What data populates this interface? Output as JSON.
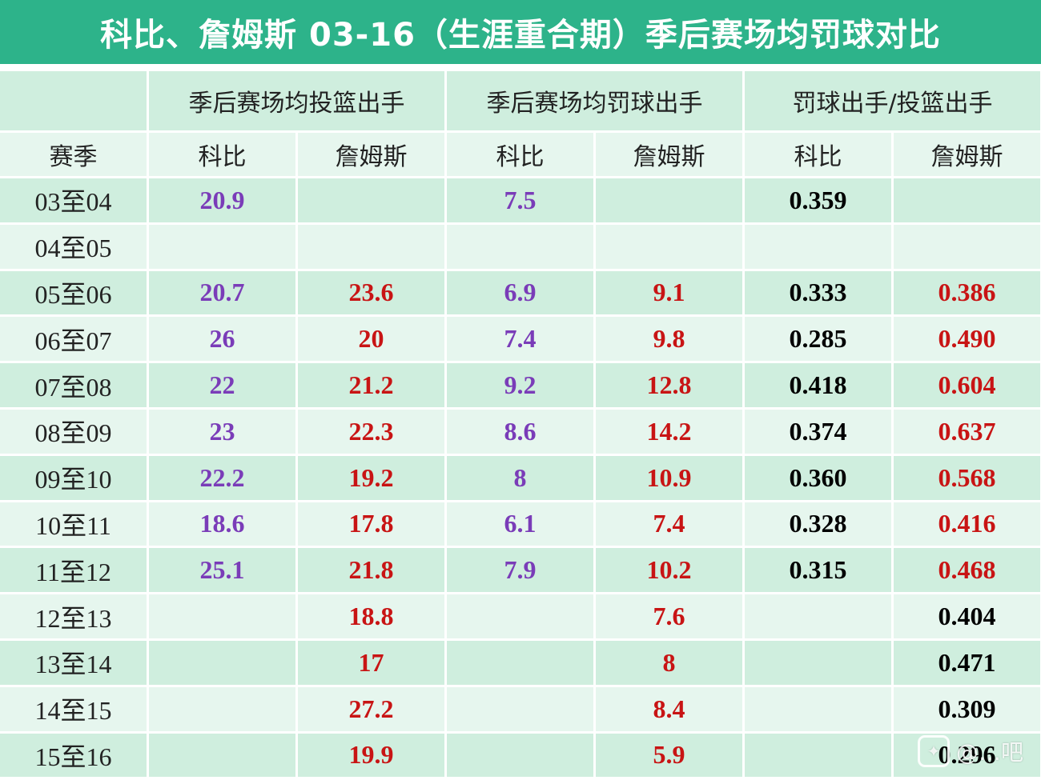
{
  "title": "科比、詹姆斯 03-16（生涯重合期）季后赛场均罚球对比",
  "header_groups": {
    "shots": "季后赛场均投篮出手",
    "ft": "季后赛场均罚球出手",
    "ratio": "罚球出手/投篮出手"
  },
  "header_sub": {
    "season": "赛季",
    "kobe": "科比",
    "james": "詹姆斯"
  },
  "rows": [
    {
      "season": "03至04",
      "kobe_fga": "20.9",
      "james_fga": "",
      "kobe_fta": "7.5",
      "james_fta": "",
      "kobe_ratio": "0.359",
      "james_ratio": ""
    },
    {
      "season": "04至05",
      "kobe_fga": "",
      "james_fga": "",
      "kobe_fta": "",
      "james_fta": "",
      "kobe_ratio": "",
      "james_ratio": ""
    },
    {
      "season": "05至06",
      "kobe_fga": "20.7",
      "james_fga": "23.6",
      "kobe_fta": "6.9",
      "james_fta": "9.1",
      "kobe_ratio": "0.333",
      "james_ratio": "0.386"
    },
    {
      "season": "06至07",
      "kobe_fga": "26",
      "james_fga": "20",
      "kobe_fta": "7.4",
      "james_fta": "9.8",
      "kobe_ratio": "0.285",
      "james_ratio": "0.490"
    },
    {
      "season": "07至08",
      "kobe_fga": "22",
      "james_fga": "21.2",
      "kobe_fta": "9.2",
      "james_fta": "12.8",
      "kobe_ratio": "0.418",
      "james_ratio": "0.604"
    },
    {
      "season": "08至09",
      "kobe_fga": "23",
      "james_fga": "22.3",
      "kobe_fta": "8.6",
      "james_fta": "14.2",
      "kobe_ratio": "0.374",
      "james_ratio": "0.637"
    },
    {
      "season": "09至10",
      "kobe_fga": "22.2",
      "james_fga": "19.2",
      "kobe_fta": "8",
      "james_fta": "10.9",
      "kobe_ratio": "0.360",
      "james_ratio": "0.568"
    },
    {
      "season": "10至11",
      "kobe_fga": "18.6",
      "james_fga": "17.8",
      "kobe_fta": "6.1",
      "james_fta": "7.4",
      "kobe_ratio": "0.328",
      "james_ratio": "0.416"
    },
    {
      "season": "11至12",
      "kobe_fga": "25.1",
      "james_fga": "21.8",
      "kobe_fta": "7.9",
      "james_fta": "10.2",
      "kobe_ratio": "0.315",
      "james_ratio": "0.468"
    },
    {
      "season": "12至13",
      "kobe_fga": "",
      "james_fga": "18.8",
      "kobe_fta": "",
      "james_fta": "7.6",
      "kobe_ratio": "",
      "james_ratio": "0.404"
    },
    {
      "season": "13至14",
      "kobe_fga": "",
      "james_fga": "17",
      "kobe_fta": "",
      "james_fta": "8",
      "kobe_ratio": "",
      "james_ratio": "0.471"
    },
    {
      "season": "14至15",
      "kobe_fga": "",
      "james_fga": "27.2",
      "kobe_fta": "",
      "james_fta": "8.4",
      "kobe_ratio": "",
      "james_ratio": "0.309"
    },
    {
      "season": "15至16",
      "kobe_fga": "",
      "james_fga": "19.9",
      "kobe_fta": "",
      "james_fta": "5.9",
      "kobe_ratio": "",
      "james_ratio": "0.296"
    }
  ],
  "colors": {
    "title_bg": "#2db38a",
    "row_dark": "#cfeede",
    "row_light": "#e6f6ee",
    "kobe": "#7a3cb8",
    "james": "#c81414",
    "ratio_highlight": "#000000"
  },
  "watermark": {
    "icon": "tieba-paw-icon",
    "text": "@…吧"
  }
}
